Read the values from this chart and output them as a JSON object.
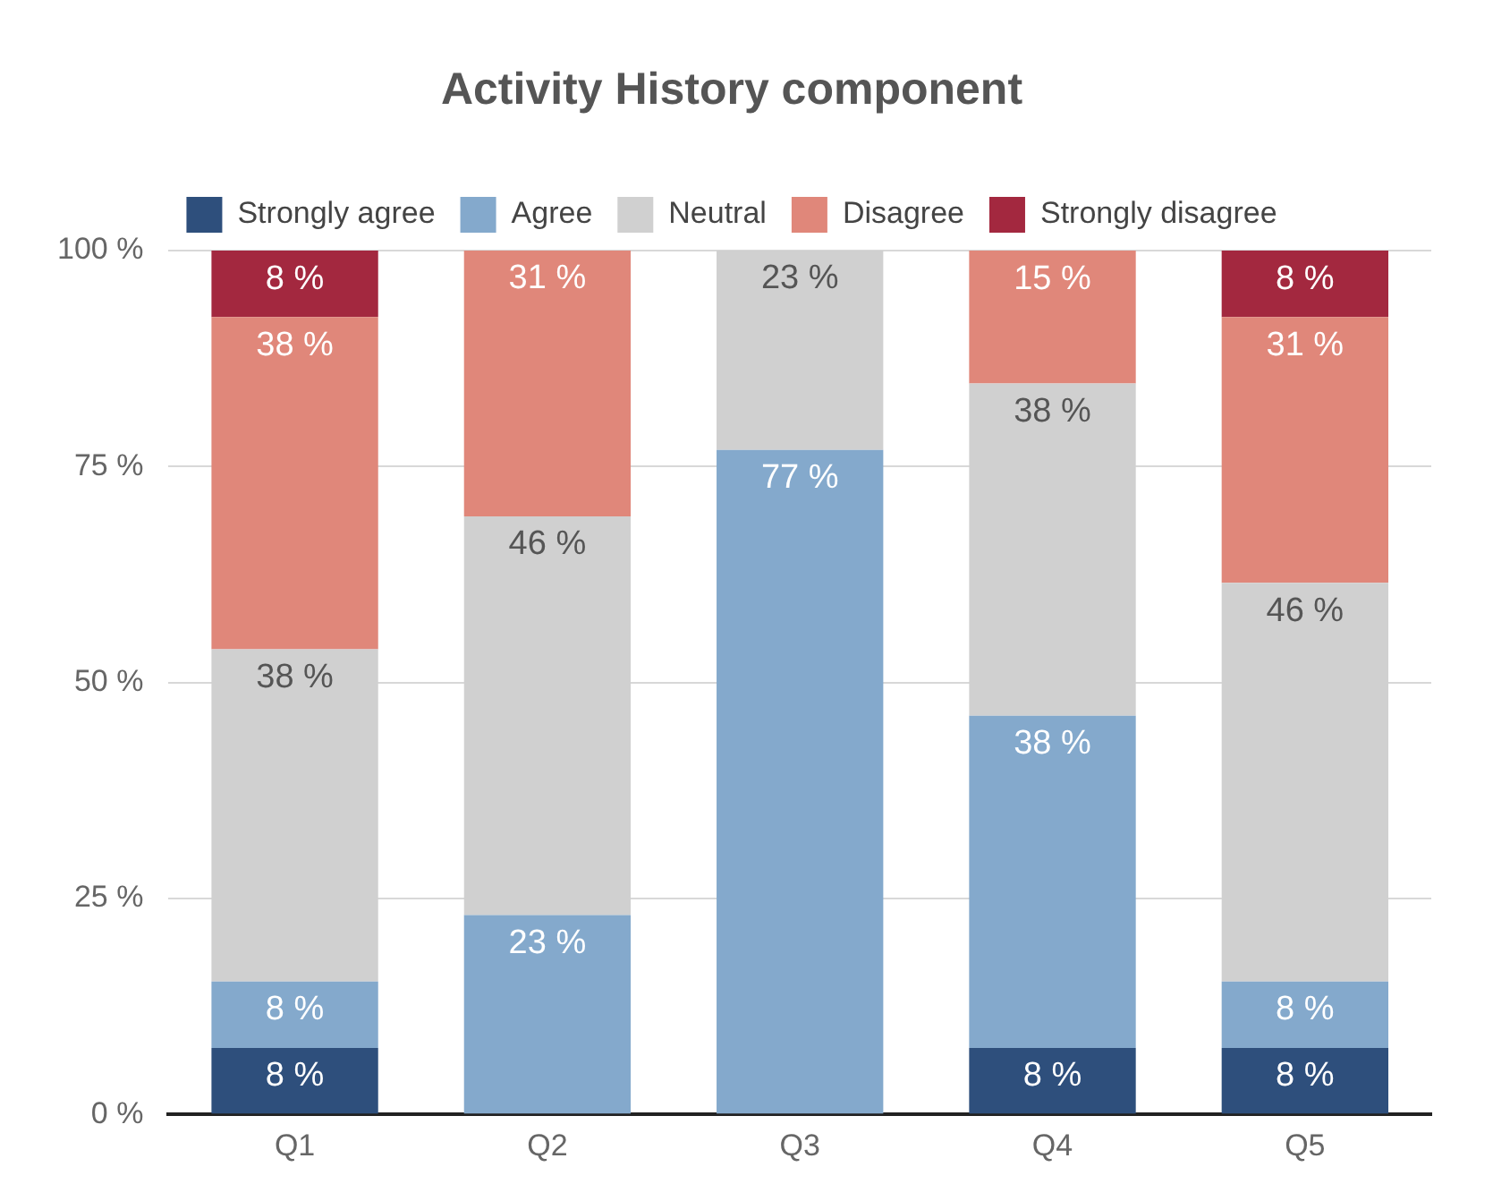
{
  "chart_data": {
    "type": "bar",
    "title": "Activity History component",
    "categories": [
      "Q1",
      "Q2",
      "Q3",
      "Q4",
      "Q5"
    ],
    "stacked": true,
    "legend": "top",
    "grid": "y",
    "ylim": [
      0,
      100
    ],
    "yticks": [
      {
        "value": 0,
        "label": "0 %"
      },
      {
        "value": 25,
        "label": "25 %"
      },
      {
        "value": 50,
        "label": "50 %"
      },
      {
        "value": 75,
        "label": "75 %"
      },
      {
        "value": 100,
        "label": "100 %"
      }
    ],
    "series": [
      {
        "name": "Strongly agree",
        "color": "#2e4f7c",
        "values": [
          7.69,
          null,
          null,
          7.69,
          7.69
        ],
        "value_labels": [
          "8 %",
          null,
          null,
          "8 %",
          "8 %"
        ]
      },
      {
        "name": "Agree",
        "color": "#84a9cc",
        "values": [
          7.69,
          23.08,
          76.92,
          38.46,
          7.69
        ],
        "value_labels": [
          "8 %",
          "23 %",
          "77 %",
          "38 %",
          "8 %"
        ]
      },
      {
        "name": "Neutral",
        "color": "#d0d0d0",
        "values": [
          38.46,
          46.15,
          23.08,
          38.46,
          46.15
        ],
        "value_labels": [
          "38 %",
          "46 %",
          "23 %",
          "38 %",
          "46 %"
        ]
      },
      {
        "name": "Disagree",
        "color": "#e0877a",
        "values": [
          38.46,
          30.77,
          null,
          15.38,
          30.77
        ],
        "value_labels": [
          "38 %",
          "31 %",
          null,
          "15 %",
          "31 %"
        ]
      },
      {
        "name": "Strongly disagree",
        "color": "#a3283f",
        "values": [
          7.69,
          null,
          null,
          null,
          7.69
        ],
        "value_labels": [
          "8 %",
          null,
          null,
          null,
          "8 %"
        ]
      }
    ]
  }
}
